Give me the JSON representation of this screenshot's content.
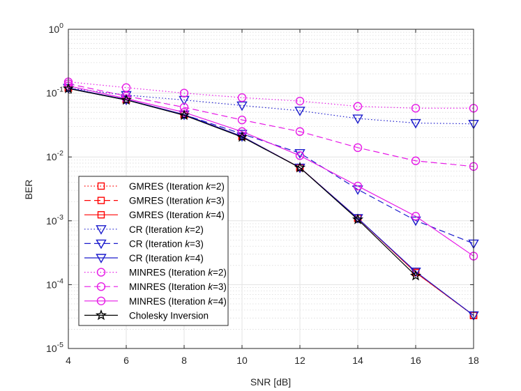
{
  "chart_data": {
    "type": "line",
    "xlabel": "SNR [dB]",
    "ylabel": "BER",
    "x": [
      4,
      6,
      8,
      10,
      12,
      14,
      16,
      18
    ],
    "xlim": [
      4,
      18
    ],
    "ylim": [
      1e-05,
      1
    ],
    "yscale": "log",
    "grid": true,
    "legend_position": "bottom-left",
    "xticks": [
      "4",
      "6",
      "8",
      "10",
      "12",
      "14",
      "16",
      "18"
    ],
    "yticks": [
      {
        "base": "10",
        "exp": "-5"
      },
      {
        "base": "10",
        "exp": "-4"
      },
      {
        "base": "10",
        "exp": "-3"
      },
      {
        "base": "10",
        "exp": "-2"
      },
      {
        "base": "10",
        "exp": "-1"
      },
      {
        "base": "10",
        "exp": "0"
      }
    ],
    "series": [
      {
        "name": "GMRES (Iteration k=2)",
        "label_pre": "GMRES (Iteration ",
        "label_k": "k",
        "label_post": "=2)",
        "color": "#ff0000",
        "dash": "dotted",
        "marker": "square",
        "values": [
          0.12,
          0.079,
          0.046,
          0.021,
          0.0068,
          0.0011,
          0.000155,
          3.3e-05
        ]
      },
      {
        "name": "GMRES (Iteration k=3)",
        "label_pre": "GMRES (Iteration ",
        "label_k": "k",
        "label_post": "=3)",
        "color": "#ff0000",
        "dash": "dashed",
        "marker": "square",
        "values": [
          0.12,
          0.079,
          0.046,
          0.021,
          0.0068,
          0.0011,
          0.000155,
          3.3e-05
        ]
      },
      {
        "name": "GMRES (Iteration k=4)",
        "label_pre": "GMRES (Iteration ",
        "label_k": "k",
        "label_post": "=4)",
        "color": "#ff0000",
        "dash": "solid",
        "marker": "square",
        "values": [
          0.12,
          0.079,
          0.046,
          0.021,
          0.0068,
          0.0011,
          0.000155,
          3.3e-05
        ]
      },
      {
        "name": "CR (Iteration k=2)",
        "label_pre": "CR (Iteration ",
        "label_k": "k",
        "label_post": "=2)",
        "color": "#1a1acc",
        "dash": "dotted",
        "marker": "triangle-down",
        "values": [
          0.12,
          0.093,
          0.078,
          0.064,
          0.053,
          0.04,
          0.034,
          0.033
        ]
      },
      {
        "name": "CR (Iteration k=3)",
        "label_pre": "CR (Iteration ",
        "label_k": "k",
        "label_post": "=3)",
        "color": "#1a1acc",
        "dash": "dashed",
        "marker": "triangle-down",
        "values": [
          0.12,
          0.079,
          0.046,
          0.023,
          0.0115,
          0.0031,
          0.00101,
          0.00044
        ]
      },
      {
        "name": "CR (Iteration k=4)",
        "label_pre": "CR (Iteration ",
        "label_k": "k",
        "label_post": "=4)",
        "color": "#1a1acc",
        "dash": "solid",
        "marker": "triangle-down",
        "values": [
          0.12,
          0.079,
          0.046,
          0.021,
          0.0068,
          0.0011,
          0.00016,
          3.3e-05
        ]
      },
      {
        "name": "MINRES (Iteration k=2)",
        "label_pre": "MINRES (Iteration ",
        "label_k": "k",
        "label_post": "=2)",
        "color": "#e619e6",
        "dash": "dotted",
        "marker": "circle",
        "values": [
          0.15,
          0.122,
          0.1,
          0.085,
          0.075,
          0.062,
          0.058,
          0.058
        ]
      },
      {
        "name": "MINRES (Iteration k=3)",
        "label_pre": "MINRES (Iteration ",
        "label_k": "k",
        "label_post": "=3)",
        "color": "#e619e6",
        "dash": "dashed",
        "marker": "circle",
        "values": [
          0.14,
          0.09,
          0.06,
          0.038,
          0.025,
          0.014,
          0.0087,
          0.0071
        ]
      },
      {
        "name": "MINRES (Iteration k=4)",
        "label_pre": "MINRES (Iteration ",
        "label_k": "k",
        "label_post": "=4)",
        "color": "#e619e6",
        "dash": "solid",
        "marker": "circle",
        "values": [
          0.13,
          0.082,
          0.05,
          0.025,
          0.0105,
          0.0035,
          0.00118,
          0.00028
        ]
      },
      {
        "name": "Cholesky Inversion",
        "label_pre": "Cholesky Inversion",
        "label_k": "",
        "label_post": "",
        "color": "#000000",
        "dash": "solid",
        "marker": "star",
        "values": [
          0.118,
          0.078,
          0.045,
          0.0205,
          0.0068,
          0.00105,
          0.000138,
          null
        ]
      }
    ]
  }
}
